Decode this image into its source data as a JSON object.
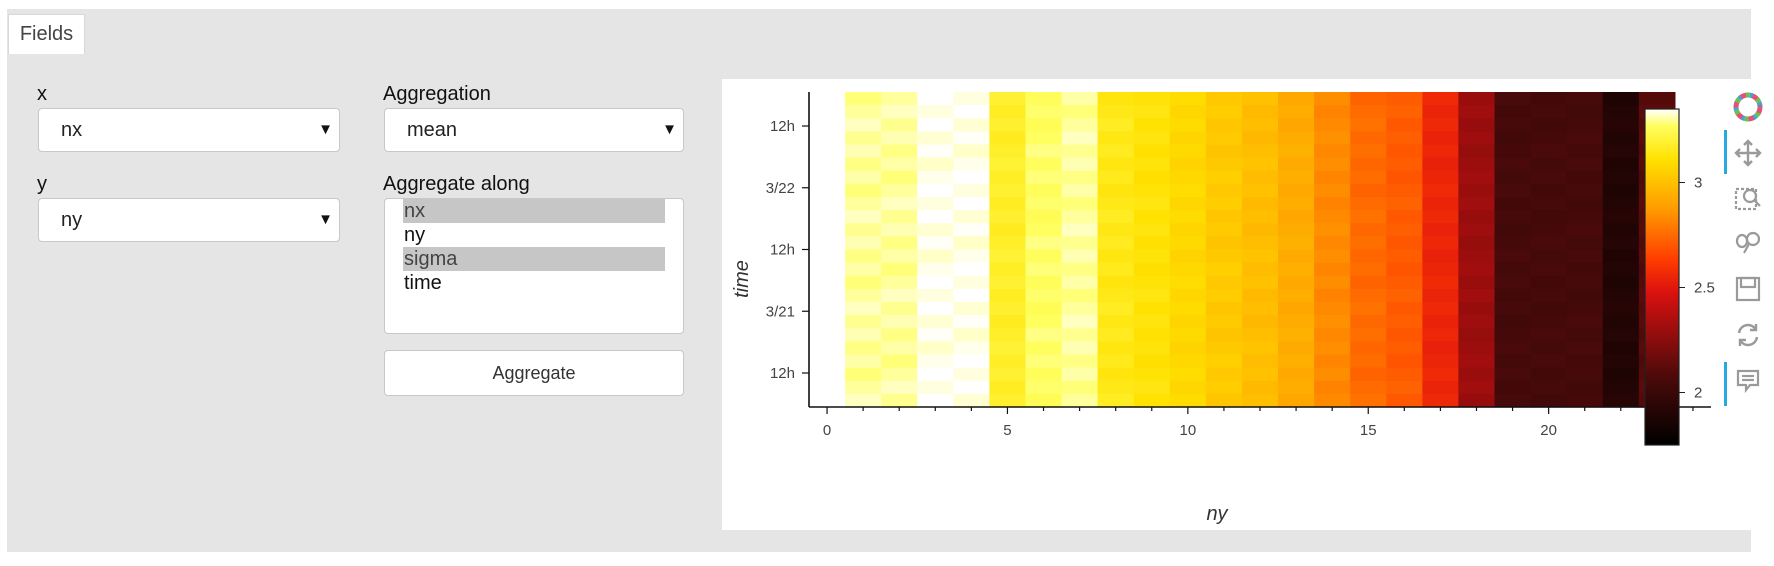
{
  "tabs": [
    {
      "label": "Fields"
    }
  ],
  "fields": {
    "x_label": "x",
    "x_value": "nx",
    "y_label": "y",
    "y_value": "ny",
    "aggregation_label": "Aggregation",
    "aggregation_value": "mean",
    "aggregate_along_label": "Aggregate along",
    "aggregate_along_options": [
      {
        "label": "nx",
        "selected": true
      },
      {
        "label": "ny",
        "selected": false
      },
      {
        "label": "sigma",
        "selected": true
      },
      {
        "label": "time",
        "selected": false
      }
    ],
    "aggregate_button": "Aggregate"
  },
  "chart_data": {
    "type": "heatmap",
    "xlabel": "ny",
    "ylabel": "time",
    "x_ticks": [
      "0",
      "5",
      "10",
      "15",
      "20"
    ],
    "y_ticks": [
      "3/20 12h",
      "3/21",
      "3/21 12h",
      "3/22",
      "3/22 12h"
    ],
    "y_tick_labels": [
      "12h",
      "3/21",
      "12h",
      "3/22",
      "12h"
    ],
    "xlim": [
      -0.5,
      24.5
    ],
    "colorbar": {
      "ticks": [
        "2",
        "2.5",
        "3"
      ],
      "range": [
        1.75,
        3.35
      ],
      "colormap": "fire"
    },
    "columns_ny": [
      1,
      2,
      3,
      4,
      5,
      6,
      7,
      8,
      9,
      10,
      11,
      12,
      13,
      14,
      15,
      16,
      17,
      18,
      19,
      20,
      21,
      22,
      23
    ],
    "column_mean_values": [
      3.3,
      3.3,
      3.34,
      3.34,
      3.18,
      3.27,
      3.3,
      3.15,
      3.12,
      3.08,
      3.03,
      2.99,
      2.93,
      2.83,
      2.75,
      2.71,
      2.55,
      2.3,
      2.05,
      2.05,
      2.05,
      1.9,
      2.1
    ]
  },
  "toolbar": {
    "tools": [
      "bokeh-logo-icon",
      "pan-icon",
      "box-zoom-icon",
      "wheel-zoom-icon",
      "save-icon",
      "reset-icon",
      "hover-icon"
    ]
  }
}
